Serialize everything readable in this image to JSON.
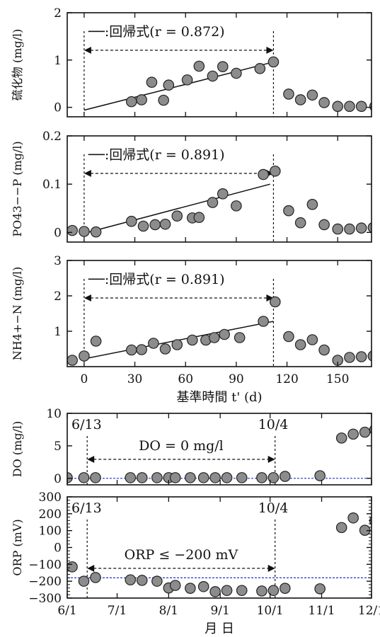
{
  "chart_data": [
    {
      "type": "scatter",
      "ylabel": "硫化物 (mg/l)",
      "ylim": [
        -0.2,
        2
      ],
      "yticks": [
        "0",
        "1",
        "2"
      ],
      "xlim": [
        -10,
        170
      ],
      "legend": "──:回帰式(r = 0.872)",
      "points": [
        [
          28,
          0.12
        ],
        [
          34,
          0.16
        ],
        [
          40,
          0.53
        ],
        [
          47,
          0.15
        ],
        [
          50,
          0.47
        ],
        [
          61,
          0.58
        ],
        [
          68,
          0.87
        ],
        [
          76,
          0.66
        ],
        [
          82,
          0.86
        ],
        [
          90,
          0.72
        ],
        [
          104,
          0.82
        ],
        [
          112,
          0.96
        ],
        [
          121,
          0.28
        ],
        [
          128,
          0.16
        ],
        [
          135,
          0.26
        ],
        [
          142,
          0.1
        ],
        [
          150,
          0.02
        ],
        [
          157,
          0.02
        ],
        [
          164,
          0.02
        ],
        [
          172,
          0.02
        ]
      ],
      "regression": [
        [
          0,
          -0.06
        ],
        [
          110,
          0.94
        ]
      ]
    },
    {
      "type": "scatter",
      "ylabel": "PO43−−P (mg/l)",
      "ylim": [
        -0.02,
        0.2
      ],
      "yticks": [
        "0",
        "0.1",
        "0.2"
      ],
      "xlim": [
        -10,
        170
      ],
      "legend": "──:回帰式(r = 0.891)",
      "points": [
        [
          -7,
          0.004
        ],
        [
          0,
          0.002
        ],
        [
          7,
          0.001
        ],
        [
          28,
          0.023
        ],
        [
          35,
          0.013
        ],
        [
          42,
          0.016
        ],
        [
          48,
          0.017
        ],
        [
          55,
          0.034
        ],
        [
          64,
          0.03
        ],
        [
          68,
          0.031
        ],
        [
          76,
          0.062
        ],
        [
          82,
          0.08
        ],
        [
          90,
          0.055
        ],
        [
          106,
          0.12
        ],
        [
          113,
          0.127
        ],
        [
          121,
          0.045
        ],
        [
          128,
          0.02
        ],
        [
          135,
          0.058
        ],
        [
          142,
          0.016
        ],
        [
          150,
          0.007
        ],
        [
          157,
          0.007
        ],
        [
          164,
          0.009
        ],
        [
          171,
          0.01
        ]
      ],
      "regression": [
        [
          0,
          -0.002
        ],
        [
          110,
          0.1
        ]
      ]
    },
    {
      "type": "scatter",
      "ylabel": "NH4+−N (mg/l)",
      "ylim": [
        0,
        3
      ],
      "yticks": [
        "1",
        "2",
        "3"
      ],
      "xlim": [
        -10,
        170
      ],
      "xticks": [
        "0",
        "30",
        "60",
        "90",
        "120",
        "150"
      ],
      "xlabel": "基準時間 t' (d)",
      "legend": "──:回帰式(r = 0.891)",
      "points": [
        [
          -7,
          0.18
        ],
        [
          0,
          0.3
        ],
        [
          7,
          0.72
        ],
        [
          28,
          0.47
        ],
        [
          34,
          0.48
        ],
        [
          41,
          0.66
        ],
        [
          48,
          0.5
        ],
        [
          55,
          0.62
        ],
        [
          64,
          0.75
        ],
        [
          72,
          0.75
        ],
        [
          77,
          0.82
        ],
        [
          83,
          0.91
        ],
        [
          92,
          0.82
        ],
        [
          106,
          1.28
        ],
        [
          113,
          1.83
        ],
        [
          121,
          0.85
        ],
        [
          128,
          0.62
        ],
        [
          135,
          0.76
        ],
        [
          142,
          0.47
        ],
        [
          150,
          0.18
        ],
        [
          157,
          0.26
        ],
        [
          164,
          0.28
        ],
        [
          171,
          0.3
        ]
      ],
      "regression": [
        [
          0,
          0.22
        ],
        [
          112,
          1.28
        ]
      ]
    },
    {
      "type": "scatter",
      "ylabel": "DO (mg/l)",
      "ylim": [
        -1,
        10
      ],
      "yticks": [
        "0",
        "5",
        "10"
      ],
      "xlim": [
        "6/1",
        "12/1"
      ],
      "reference_line": 0,
      "labels": {
        "start": "6/13",
        "end": "10/4",
        "range": "DO = 0 mg/l"
      },
      "points": [
        [
          "6/1",
          0.1
        ],
        [
          "6/11",
          0.1
        ],
        [
          "6/18",
          0.1
        ],
        [
          "7/9",
          0.1
        ],
        [
          "7/16",
          0.1
        ],
        [
          "7/25",
          0.1
        ],
        [
          "8/1",
          0.1
        ],
        [
          "8/5",
          0.1
        ],
        [
          "8/14",
          0.1
        ],
        [
          "8/22",
          0.1
        ],
        [
          "8/29",
          0.1
        ],
        [
          "9/5",
          0.1
        ],
        [
          "9/14",
          0.1
        ],
        [
          "9/26",
          0.1
        ],
        [
          "10/3",
          0.1
        ],
        [
          "10/10",
          0.3
        ],
        [
          "10/31",
          0.4
        ],
        [
          "11/13",
          6.2
        ],
        [
          "11/20",
          6.8
        ],
        [
          "11/27",
          7.1
        ],
        [
          "12/3",
          7.5
        ]
      ]
    },
    {
      "type": "scatter",
      "ylabel": "ORP (mV)",
      "ylim": [
        -300,
        300
      ],
      "yticks": [
        "−300",
        "−200",
        "−100",
        "0",
        "100",
        "200",
        "300"
      ],
      "xlim": [
        "6/1",
        "12/1"
      ],
      "xticks": [
        "6/1",
        "7/1",
        "8/1",
        "9/1",
        "10/1",
        "11/1",
        "12/1"
      ],
      "xlabel": "月 日",
      "reference_line": -180,
      "labels": {
        "start": "6/13",
        "end": "10/4",
        "range": "ORP ≤ −200 mV"
      },
      "points": [
        [
          "6/4",
          -115
        ],
        [
          "6/11",
          -200
        ],
        [
          "6/18",
          -178
        ],
        [
          "7/9",
          -192
        ],
        [
          "7/16",
          -195
        ],
        [
          "7/25",
          -200
        ],
        [
          "8/1",
          -240
        ],
        [
          "8/5",
          -225
        ],
        [
          "8/14",
          -242
        ],
        [
          "8/22",
          -232
        ],
        [
          "8/29",
          -262
        ],
        [
          "9/5",
          -255
        ],
        [
          "9/14",
          -255
        ],
        [
          "9/26",
          -258
        ],
        [
          "10/3",
          -255
        ],
        [
          "10/10",
          -242
        ],
        [
          "10/31",
          -245
        ],
        [
          "11/13",
          118
        ],
        [
          "11/20",
          175
        ],
        [
          "11/27",
          102
        ],
        [
          "12/3",
          158
        ]
      ]
    }
  ]
}
